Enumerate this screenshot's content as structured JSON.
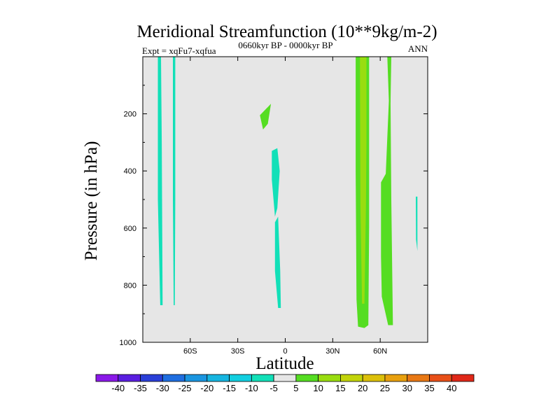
{
  "chart_data": {
    "type": "heatmap",
    "title": "Meridional Streamfunction (10**9kg/m-2)",
    "subtitle_left": "Expt = xqFu7-xqfua",
    "subtitle_center": "0660kyr BP - 0000kyr BP",
    "subtitle_right": "ANN",
    "xlabel": "Latitude",
    "ylabel": "Pressure (in hPa)",
    "xlim": [
      -90,
      90
    ],
    "ylim": [
      1000,
      0
    ],
    "x_ticks": [
      {
        "value": -60,
        "label": "60S"
      },
      {
        "value": -30,
        "label": "30S"
      },
      {
        "value": 0,
        "label": "0"
      },
      {
        "value": 30,
        "label": "30N"
      },
      {
        "value": 60,
        "label": "60N"
      }
    ],
    "y_ticks": [
      {
        "value": 200,
        "label": "200"
      },
      {
        "value": 400,
        "label": "400"
      },
      {
        "value": 600,
        "label": "600"
      },
      {
        "value": 800,
        "label": "800"
      },
      {
        "value": 1000,
        "label": "1000"
      }
    ],
    "background_color": "#e6e6e6",
    "colorbar": {
      "labels": [
        "-40",
        "-35",
        "-30",
        "-25",
        "-20",
        "-15",
        "-10",
        "-5",
        "5",
        "10",
        "15",
        "20",
        "25",
        "30",
        "35",
        "40"
      ],
      "colors": [
        "#8a19e8",
        "#5a1ee0",
        "#2a3fd8",
        "#1f6ee0",
        "#1a95e0",
        "#16b5e0",
        "#12cfe0",
        "#12e0b8",
        "#e6e6e6",
        "#55dd22",
        "#99dd10",
        "#c2d40a",
        "#dcc00a",
        "#e8a00e",
        "#e87814",
        "#e85018",
        "#e02818"
      ]
    },
    "regions": [
      {
        "name": "sh-highlat-band-a",
        "level": "-5",
        "color": "#12e0b8",
        "points": [
          [
            -80.5,
            0
          ],
          [
            -78.5,
            0
          ],
          [
            -78,
            300
          ],
          [
            -77.5,
            870
          ],
          [
            -79,
            870
          ],
          [
            -80.5,
            500
          ]
        ]
      },
      {
        "name": "sh-highlat-band-b",
        "level": "-5",
        "color": "#12e0b8",
        "points": [
          [
            -71,
            0
          ],
          [
            -69.5,
            0
          ],
          [
            -69.5,
            500
          ],
          [
            -69.8,
            870
          ],
          [
            -70.5,
            870
          ],
          [
            -71,
            500
          ]
        ]
      },
      {
        "name": "upper-positive-patch",
        "level": "5",
        "color": "#55dd22",
        "points": [
          [
            -16,
            205
          ],
          [
            -9,
            165
          ],
          [
            -11,
            235
          ],
          [
            -14,
            255
          ]
        ]
      },
      {
        "name": "tropical-negative-upper",
        "level": "-5",
        "color": "#12e0b8",
        "points": [
          [
            -8.5,
            330
          ],
          [
            -5,
            320
          ],
          [
            -3.5,
            400
          ],
          [
            -5,
            530
          ],
          [
            -6.5,
            560
          ],
          [
            -8.5,
            430
          ]
        ]
      },
      {
        "name": "tropical-negative-lower",
        "level": "-5",
        "color": "#12e0b8",
        "points": [
          [
            -6.5,
            580
          ],
          [
            -4.5,
            560
          ],
          [
            -3.2,
            750
          ],
          [
            -2.8,
            880
          ],
          [
            -4.5,
            880
          ],
          [
            -6.5,
            750
          ]
        ]
      },
      {
        "name": "nh-midlat-band-outer",
        "level": "5",
        "color": "#55dd22",
        "points": [
          [
            44.5,
            0
          ],
          [
            53,
            0
          ],
          [
            53,
            600
          ],
          [
            52.5,
            940
          ],
          [
            50,
            950
          ],
          [
            46,
            945
          ],
          [
            45,
            850
          ],
          [
            44.5,
            400
          ]
        ]
      },
      {
        "name": "nh-midlat-band-core",
        "level": "10",
        "color": "#99dd10",
        "points": [
          [
            47.2,
            0
          ],
          [
            51.3,
            0
          ],
          [
            51.3,
            300
          ],
          [
            51,
            520
          ],
          [
            50,
            865
          ],
          [
            48.5,
            865
          ],
          [
            47.5,
            520
          ]
        ]
      },
      {
        "name": "nh-highlat-band-a",
        "level": "5",
        "color": "#55dd22",
        "points": [
          [
            60.5,
            440
          ],
          [
            63.5,
            410
          ],
          [
            65.5,
            150
          ],
          [
            66.5,
            150
          ],
          [
            67,
            500
          ],
          [
            68,
            940
          ],
          [
            65,
            940
          ],
          [
            61,
            840
          ],
          [
            60.5,
            700
          ]
        ]
      },
      {
        "name": "nh-highlat-band-b",
        "level": "5",
        "color": "#55dd22",
        "points": [
          [
            64.5,
            0
          ],
          [
            67,
            0
          ],
          [
            66.5,
            160
          ],
          [
            65.5,
            160
          ]
        ]
      },
      {
        "name": "nh-polar-sliver",
        "level": "-5",
        "color": "#12e0b8",
        "points": [
          [
            82.5,
            490
          ],
          [
            83.5,
            490
          ],
          [
            83.5,
            680
          ],
          [
            82.6,
            640
          ]
        ]
      }
    ]
  }
}
